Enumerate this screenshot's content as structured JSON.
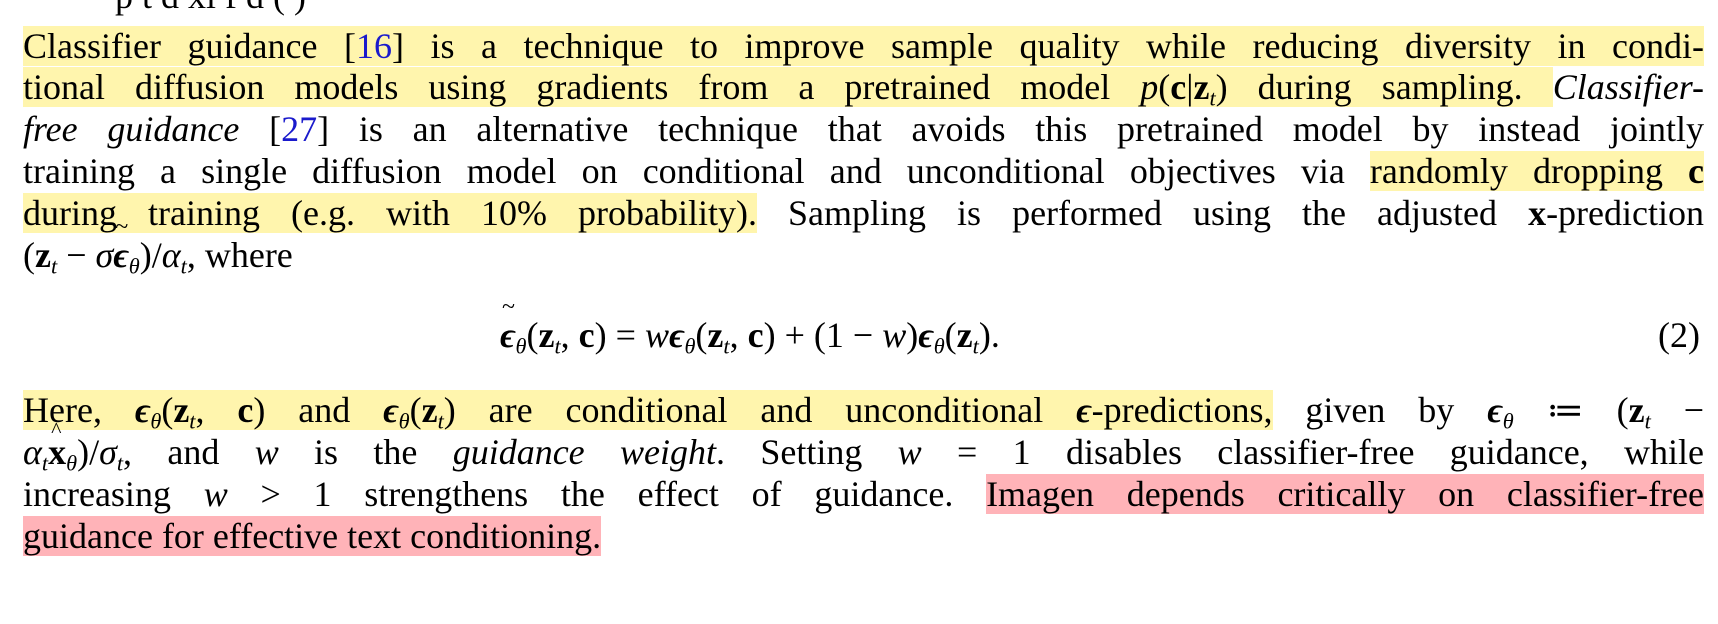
{
  "cutoff_text": "p t    d  xl   f   d   (   )",
  "para1": {
    "l1": {
      "a": "Classifier guidance [",
      "cite": "16",
      "b": "] is a technique to improve sample quality while reducing diversity in condi-"
    },
    "l2": {
      "a": "tional diffusion models using gradients from a pretrained model ",
      "b": " during sampling. ",
      "c": "Classifier-"
    },
    "l3": {
      "a": "free guidance",
      "b": " [",
      "cite": "27",
      "c": "] is an alternative technique that avoids this pretrained model by instead jointly"
    },
    "l4": {
      "a": "training a single diffusion model on conditional and unconditional objectives via ",
      "b": "randomly dropping "
    },
    "l5": {
      "a": "during training (e.g. with 10% probability).",
      "b": " Sampling is performed using the adjusted ",
      "c": "-prediction"
    },
    "l6": {
      "a": ", where"
    }
  },
  "equation": {
    "number": "(2)"
  },
  "para2": {
    "l1": {
      "a": "Here, ",
      "b": " and ",
      "c": " are conditional and unconditional ",
      "d": "-predictions,",
      "e": " given by "
    },
    "l2": {
      "a": ", and ",
      "b": " is the ",
      "c": "guidance weight",
      "d": ". Setting ",
      "e": " disables classifier-free guidance, while"
    },
    "l3": {
      "a": "increasing ",
      "b": " strengthens the effect of guidance. ",
      "c": "Imagen depends critically on classifier-free"
    },
    "l4": {
      "a": "guidance for effective text conditioning."
    }
  }
}
